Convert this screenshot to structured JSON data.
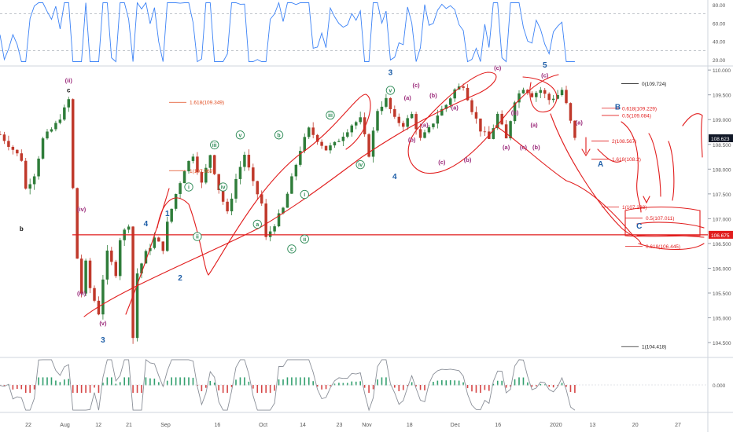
{
  "chart_data": {
    "type": "line",
    "instrument_label": "",
    "x_ticks": [
      "22",
      "Aug",
      "12",
      "21",
      "Sep",
      "16",
      "Oct",
      "14",
      "23",
      "Nov",
      "18",
      "Dec",
      "16",
      "2020",
      "13",
      "20",
      "27"
    ],
    "main": {
      "ylim": [
        104.2,
        110.05
      ],
      "y_ticks": [
        {
          "value": 110.0,
          "label": "110.000"
        },
        {
          "value": 109.5,
          "label": "109.500"
        },
        {
          "value": 109.0,
          "label": "109.000"
        },
        {
          "value": 108.5,
          "label": "108.500"
        },
        {
          "value": 108.0,
          "label": "108.000"
        },
        {
          "value": 107.5,
          "label": "107.500"
        },
        {
          "value": 107.0,
          "label": "107.000"
        },
        {
          "value": 106.5,
          "label": "106.500"
        },
        {
          "value": 106.0,
          "label": "106.000"
        },
        {
          "value": 105.5,
          "label": "105.500"
        },
        {
          "value": 105.0,
          "label": "105.000"
        },
        {
          "value": 104.5,
          "label": "104.500"
        }
      ],
      "last_price": {
        "value": 108.623,
        "label": "108.623"
      },
      "horizontal_level": {
        "value": 106.675,
        "label": "106.675"
      },
      "price_path": [
        [
          0,
          108.7
        ],
        [
          3,
          108.4
        ],
        [
          5,
          108.2
        ],
        [
          6,
          107.6
        ],
        [
          8,
          107.9
        ],
        [
          10,
          108.6
        ],
        [
          13,
          108.9
        ],
        [
          15,
          109.2
        ],
        [
          16,
          109.4
        ],
        [
          17,
          107.6
        ],
        [
          18,
          106.2
        ],
        [
          19,
          105.5
        ],
        [
          20,
          106.1
        ],
        [
          21,
          105.6
        ],
        [
          23,
          105.1
        ],
        [
          24,
          105.8
        ],
        [
          25,
          106.3
        ],
        [
          27,
          105.9
        ],
        [
          28,
          106.6
        ],
        [
          30,
          106.9
        ],
        [
          31,
          104.6
        ],
        [
          32,
          105.9
        ],
        [
          34,
          106.3
        ],
        [
          36,
          106.6
        ],
        [
          38,
          106.4
        ],
        [
          39,
          106.9
        ],
        [
          41,
          107.5
        ],
        [
          43,
          108.0
        ],
        [
          45,
          108.3
        ],
        [
          47,
          107.7
        ],
        [
          49,
          108.3
        ],
        [
          51,
          107.6
        ],
        [
          53,
          107.1
        ],
        [
          55,
          107.8
        ],
        [
          57,
          108.3
        ],
        [
          59,
          107.7
        ],
        [
          61,
          107.3
        ],
        [
          62,
          106.6
        ],
        [
          64,
          106.9
        ],
        [
          66,
          107.2
        ],
        [
          68,
          107.8
        ],
        [
          70,
          108.4
        ],
        [
          72,
          108.8
        ],
        [
          74,
          108.6
        ],
        [
          76,
          108.4
        ],
        [
          78,
          108.5
        ],
        [
          80,
          108.7
        ],
        [
          82,
          108.9
        ],
        [
          84,
          109.0
        ],
        [
          86,
          108.3
        ],
        [
          88,
          109.2
        ],
        [
          90,
          109.4
        ],
        [
          92,
          109.0
        ],
        [
          94,
          108.9
        ],
        [
          96,
          109.1
        ],
        [
          98,
          108.6
        ],
        [
          100,
          108.8
        ],
        [
          102,
          109.1
        ],
        [
          104,
          109.3
        ],
        [
          106,
          109.6
        ],
        [
          108,
          109.7
        ],
        [
          110,
          109.2
        ],
        [
          112,
          108.8
        ],
        [
          114,
          108.6
        ],
        [
          116,
          109.1
        ],
        [
          118,
          108.6
        ],
        [
          120,
          109.4
        ],
        [
          122,
          109.65
        ],
        [
          124,
          109.5
        ],
        [
          126,
          109.6
        ],
        [
          128,
          109.4
        ],
        [
          130,
          109.5
        ],
        [
          131,
          109.6
        ],
        [
          132,
          109.3
        ],
        [
          134,
          108.6
        ]
      ],
      "ref_levels": [
        {
          "label": "1.618(109.349)",
          "value": 109.349
        },
        {
          "label": "1(107.969)",
          "value": 107.969
        },
        {
          "label": "0(109.724)",
          "value": 109.724
        },
        {
          "label": "0.618(109.229)",
          "value": 109.229
        },
        {
          "label": "0.5(109.084)",
          "value": 109.084
        },
        {
          "label": "2(108.567)",
          "value": 108.567
        },
        {
          "label": "1.618(108.2)",
          "value": 108.2
        },
        {
          "label": "1(107.238)",
          "value": 107.238
        },
        {
          "label": "0.5(107.011)",
          "value": 107.011
        },
        {
          "label": "0.618(106.445)",
          "value": 106.445
        },
        {
          "label": "1(104.418)",
          "value": 104.418
        }
      ],
      "wave_labels": [
        {
          "text": "(ii)",
          "x": 16,
          "y": 109.75
        },
        {
          "text": "c",
          "x": 16,
          "y": 109.55
        },
        {
          "text": "b",
          "x": 5,
          "y": 106.75
        },
        {
          "text": "(iv)",
          "x": 19,
          "y": 107.15
        },
        {
          "text": "(iii)",
          "x": 19,
          "y": 105.45
        },
        {
          "text": "(v)",
          "x": 24,
          "y": 104.85
        },
        {
          "text": "3",
          "x": 24,
          "y": 104.5
        },
        {
          "text": "4",
          "x": 34,
          "y": 106.85
        },
        {
          "text": "1",
          "x": 39,
          "y": 107.05
        },
        {
          "text": "2",
          "x": 42,
          "y": 105.75
        },
        {
          "text": "ii",
          "x": 46,
          "y": 106.6
        },
        {
          "text": "i",
          "x": 44,
          "y": 107.6
        },
        {
          "text": "iii",
          "x": 50,
          "y": 108.45
        },
        {
          "text": "iv",
          "x": 52,
          "y": 107.6
        },
        {
          "text": "v",
          "x": 56,
          "y": 108.65
        },
        {
          "text": "b",
          "x": 65,
          "y": 108.65
        },
        {
          "text": "a",
          "x": 60,
          "y": 106.85
        },
        {
          "text": "c",
          "x": 68,
          "y": 106.35
        },
        {
          "text": "i",
          "x": 71,
          "y": 107.45
        },
        {
          "text": "ii",
          "x": 71,
          "y": 106.55
        },
        {
          "text": "iii",
          "x": 77,
          "y": 109.05
        },
        {
          "text": "iv",
          "x": 84,
          "y": 108.05
        },
        {
          "text": "v",
          "x": 91,
          "y": 109.55
        },
        {
          "text": "3",
          "x": 91,
          "y": 109.9
        },
        {
          "text": "4",
          "x": 92,
          "y": 107.8
        },
        {
          "text": "(a)",
          "x": 95,
          "y": 109.4
        },
        {
          "text": "(b)",
          "x": 96,
          "y": 108.55
        },
        {
          "text": "(c)",
          "x": 97,
          "y": 109.65
        },
        {
          "text": "(a)",
          "x": 99,
          "y": 108.85
        },
        {
          "text": "(b)",
          "x": 101,
          "y": 109.45
        },
        {
          "text": "(c)",
          "x": 103,
          "y": 108.1
        },
        {
          "text": "(a)",
          "x": 106,
          "y": 109.2
        },
        {
          "text": "(b)",
          "x": 109,
          "y": 108.15
        },
        {
          "text": "(c)",
          "x": 116,
          "y": 110.0
        },
        {
          "text": "(a)",
          "x": 118,
          "y": 108.4
        },
        {
          "text": "(b)",
          "x": 120,
          "y": 109.1
        },
        {
          "text": "(c)",
          "x": 122,
          "y": 108.4
        },
        {
          "text": "(b)",
          "x": 125,
          "y": 108.4
        },
        {
          "text": "(a)",
          "x": 124.5,
          "y": 108.85
        },
        {
          "text": "5",
          "x": 127,
          "y": 110.05
        },
        {
          "text": "(c)",
          "x": 127,
          "y": 109.85
        },
        {
          "text": "(a)",
          "x": 135,
          "y": 108.9
        },
        {
          "text": "B",
          "x": 144,
          "y": 109.2
        },
        {
          "text": "A",
          "x": 140,
          "y": 108.05
        },
        {
          "text": "C",
          "x": 149,
          "y": 106.8
        }
      ]
    },
    "rsi": {
      "ylim": [
        15,
        85
      ],
      "y_ticks": [
        {
          "value": 80,
          "label": "80.00"
        },
        {
          "value": 60,
          "label": "60.00"
        },
        {
          "value": 40,
          "label": "40.00"
        },
        {
          "value": 20,
          "label": "20.00"
        }
      ],
      "bands": [
        70,
        30
      ]
    },
    "oscillator": {
      "ylim": [
        -0.6,
        0.6
      ],
      "y_ticks": [
        {
          "value": 0,
          "label": "0.000"
        }
      ]
    }
  },
  "colors": {
    "rsi_line": "#3b82f6",
    "wave_green": "#2e8b57",
    "wave_blue": "#1f5fa8",
    "wave_purple": "#9b2a7a",
    "wave_black": "#111111",
    "annotation_red": "#e11d1d",
    "fib_text": "#e0471a",
    "candle_up": "#2f7d3a",
    "candle_down": "#c0392b"
  }
}
